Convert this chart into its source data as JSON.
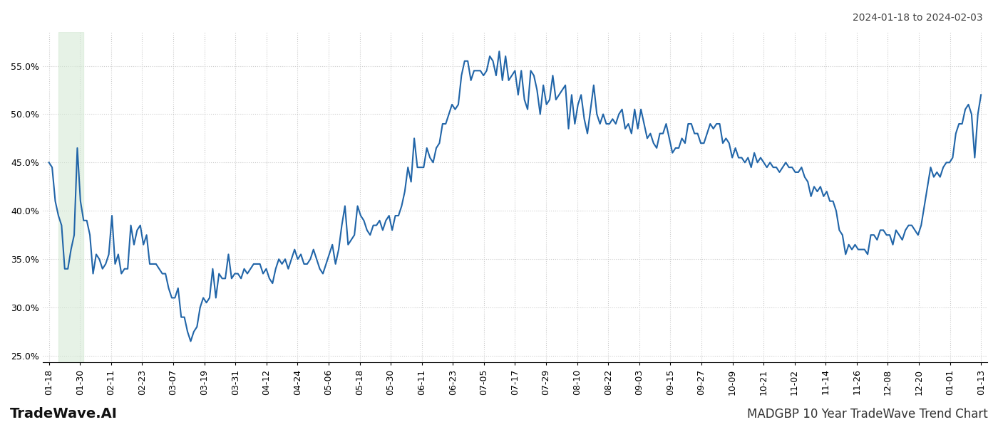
{
  "title_top_right": "2024-01-18 to 2024-02-03",
  "title_bottom_left": "TradeWave.AI",
  "title_bottom_right": "MADGBP 10 Year TradeWave Trend Chart",
  "line_color": "#2165a8",
  "line_width": 1.5,
  "shade_color": "#d6ead6",
  "shade_alpha": 0.6,
  "ylim": [
    0.243,
    0.585
  ],
  "yticks": [
    0.25,
    0.3,
    0.35,
    0.4,
    0.45,
    0.5,
    0.55
  ],
  "ytick_labels": [
    "25.0%",
    "30.0%",
    "35.0%",
    "40.0%",
    "45.0%",
    "50.0%",
    "55.0%"
  ],
  "background_color": "#ffffff",
  "grid_color": "#cccccc",
  "tick_label_fontsize": 9,
  "x_labels": [
    "01-18",
    "01-30",
    "02-11",
    "02-23",
    "03-07",
    "03-19",
    "03-31",
    "04-12",
    "04-24",
    "05-06",
    "05-18",
    "05-30",
    "06-11",
    "06-23",
    "07-05",
    "07-17",
    "07-29",
    "08-10",
    "08-22",
    "09-03",
    "09-15",
    "09-27",
    "10-09",
    "10-21",
    "11-02",
    "11-14",
    "11-26",
    "12-08",
    "12-20",
    "01-01",
    "01-13"
  ],
  "values": [
    0.45,
    0.445,
    0.41,
    0.395,
    0.385,
    0.34,
    0.34,
    0.36,
    0.375,
    0.465,
    0.41,
    0.39,
    0.39,
    0.375,
    0.335,
    0.355,
    0.35,
    0.34,
    0.345,
    0.355,
    0.395,
    0.345,
    0.355,
    0.335,
    0.34,
    0.34,
    0.385,
    0.365,
    0.38,
    0.385,
    0.365,
    0.375,
    0.345,
    0.345,
    0.345,
    0.34,
    0.335,
    0.335,
    0.32,
    0.31,
    0.31,
    0.32,
    0.29,
    0.29,
    0.275,
    0.265,
    0.275,
    0.28,
    0.3,
    0.31,
    0.305,
    0.31,
    0.34,
    0.31,
    0.335,
    0.33,
    0.33,
    0.355,
    0.33,
    0.335,
    0.335,
    0.33,
    0.34,
    0.335,
    0.34,
    0.345,
    0.345,
    0.345,
    0.335,
    0.34,
    0.33,
    0.325,
    0.34,
    0.35,
    0.345,
    0.35,
    0.34,
    0.35,
    0.36,
    0.35,
    0.355,
    0.345,
    0.345,
    0.35,
    0.36,
    0.35,
    0.34,
    0.335,
    0.345,
    0.355,
    0.365,
    0.345,
    0.36,
    0.385,
    0.405,
    0.365,
    0.37,
    0.375,
    0.405,
    0.395,
    0.39,
    0.38,
    0.375,
    0.385,
    0.385,
    0.39,
    0.38,
    0.39,
    0.395,
    0.38,
    0.395,
    0.395,
    0.405,
    0.42,
    0.445,
    0.43,
    0.475,
    0.445,
    0.445,
    0.445,
    0.465,
    0.455,
    0.45,
    0.465,
    0.47,
    0.49,
    0.49,
    0.5,
    0.51,
    0.505,
    0.51,
    0.54,
    0.555,
    0.555,
    0.535,
    0.545,
    0.545,
    0.545,
    0.54,
    0.545,
    0.56,
    0.555,
    0.54,
    0.565,
    0.535,
    0.56,
    0.535,
    0.54,
    0.545,
    0.52,
    0.545,
    0.515,
    0.505,
    0.545,
    0.54,
    0.525,
    0.5,
    0.53,
    0.51,
    0.515,
    0.54,
    0.515,
    0.52,
    0.525,
    0.53,
    0.485,
    0.52,
    0.49,
    0.51,
    0.52,
    0.495,
    0.48,
    0.505,
    0.53,
    0.5,
    0.49,
    0.5,
    0.49,
    0.49,
    0.495,
    0.49,
    0.5,
    0.505,
    0.485,
    0.49,
    0.48,
    0.505,
    0.485,
    0.505,
    0.49,
    0.475,
    0.48,
    0.47,
    0.465,
    0.48,
    0.48,
    0.49,
    0.475,
    0.46,
    0.465,
    0.465,
    0.475,
    0.47,
    0.49,
    0.49,
    0.48,
    0.48,
    0.47,
    0.47,
    0.48,
    0.49,
    0.485,
    0.49,
    0.49,
    0.47,
    0.475,
    0.47,
    0.455,
    0.465,
    0.455,
    0.455,
    0.45,
    0.455,
    0.445,
    0.46,
    0.45,
    0.455,
    0.45,
    0.445,
    0.45,
    0.445,
    0.445,
    0.44,
    0.445,
    0.45,
    0.445,
    0.445,
    0.44,
    0.44,
    0.445,
    0.435,
    0.43,
    0.415,
    0.425,
    0.42,
    0.425,
    0.415,
    0.42,
    0.41,
    0.41,
    0.4,
    0.38,
    0.375,
    0.355,
    0.365,
    0.36,
    0.365,
    0.36,
    0.36,
    0.36,
    0.355,
    0.375,
    0.375,
    0.37,
    0.38,
    0.38,
    0.375,
    0.375,
    0.365,
    0.38,
    0.375,
    0.37,
    0.38,
    0.385,
    0.385,
    0.38,
    0.375,
    0.385,
    0.405,
    0.425,
    0.445,
    0.435,
    0.44,
    0.435,
    0.445,
    0.45,
    0.45,
    0.455,
    0.48,
    0.49,
    0.49,
    0.505,
    0.51,
    0.5,
    0.455,
    0.5,
    0.52
  ],
  "shade_xstart_idx": 3,
  "shade_xend_idx": 11
}
